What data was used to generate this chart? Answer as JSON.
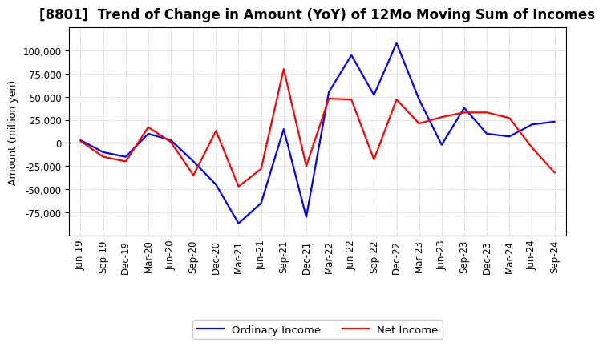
{
  "title": "[8801]  Trend of Change in Amount (YoY) of 12Mo Moving Sum of Incomes",
  "ylabel": "Amount (million yen)",
  "background_color": "#ffffff",
  "plot_bg_color": "#ffffff",
  "grid_color": "#b0b0b0",
  "title_fontsize": 12,
  "label_fontsize": 9,
  "tick_fontsize": 8.5,
  "x_labels": [
    "Jun-19",
    "Sep-19",
    "Dec-19",
    "Mar-20",
    "Jun-20",
    "Sep-20",
    "Dec-20",
    "Mar-21",
    "Jun-21",
    "Sep-21",
    "Dec-21",
    "Mar-22",
    "Jun-22",
    "Sep-22",
    "Dec-22",
    "Mar-23",
    "Jun-23",
    "Sep-23",
    "Dec-23",
    "Mar-24",
    "Jun-24",
    "Sep-24"
  ],
  "ordinary_income": [
    3000,
    -10000,
    -15000,
    10000,
    3000,
    -20000,
    -45000,
    -87000,
    -65000,
    15000,
    -80000,
    55000,
    95000,
    52000,
    108000,
    47000,
    -2000,
    38000,
    10000,
    7000,
    20000,
    23000
  ],
  "net_income": [
    2000,
    -15000,
    -20000,
    17000,
    1000,
    -35000,
    13000,
    -47000,
    -28000,
    80000,
    -25000,
    48000,
    47000,
    -18000,
    47000,
    21000,
    28000,
    33000,
    33000,
    27000,
    -5000,
    -32000
  ],
  "ordinary_color": "#0000ff",
  "net_color": "#ff0000",
  "ylim": [
    -100000,
    125000
  ],
  "yticks": [
    -75000,
    -50000,
    -25000,
    0,
    25000,
    50000,
    75000,
    100000
  ],
  "legend_labels": [
    "Ordinary Income",
    "Net Income"
  ],
  "line_width": 1.6
}
